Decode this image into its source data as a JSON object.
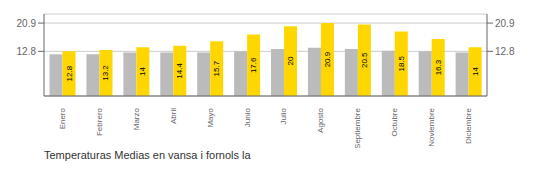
{
  "chart_data": {
    "type": "bar",
    "title": "Temperaturas Medias en vansa i fornols la",
    "categories": [
      "Enero",
      "Febrero",
      "Marzo",
      "Abril",
      "Mayo",
      "Junio",
      "Julio",
      "Agosto",
      "Septiembre",
      "Octubre",
      "Noviembre",
      "Diciembre"
    ],
    "series": [
      {
        "color": "#BBBBBB",
        "values": [
          12.0,
          12.0,
          12.5,
          12.5,
          12.5,
          12.8,
          13.5,
          13.8,
          13.5,
          13.0,
          12.8,
          12.5
        ]
      },
      {
        "color": "#FFD700",
        "values": [
          12.8,
          13.2,
          14.0,
          14.4,
          15.7,
          17.6,
          20.0,
          20.9,
          20.5,
          18.5,
          16.3,
          14.0
        ],
        "data_labels": true
      }
    ],
    "ylim": [
      0,
      23.5
    ],
    "yticks": [
      12.8,
      20.9
    ],
    "y2lim": [
      0,
      23.5
    ],
    "y2ticks": [
      12.8,
      20.9
    ],
    "grid": true
  }
}
